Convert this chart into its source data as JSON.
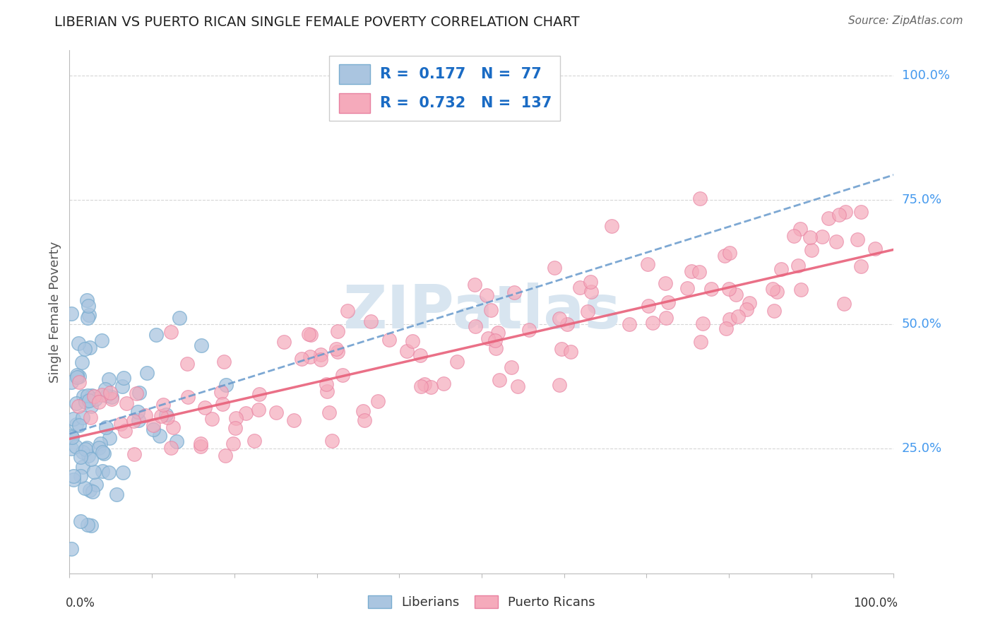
{
  "title": "LIBERIAN VS PUERTO RICAN SINGLE FEMALE POVERTY CORRELATION CHART",
  "source": "Source: ZipAtlas.com",
  "ylabel": "Single Female Poverty",
  "liberian_R": 0.177,
  "liberian_N": 77,
  "puertoRican_R": 0.732,
  "puertoRican_N": 137,
  "blue_fill": "#aac5e0",
  "blue_edge": "#7aadd0",
  "pink_fill": "#f5aabb",
  "pink_edge": "#e880a0",
  "blue_line_color": "#6699cc",
  "pink_line_color": "#e8607a",
  "legend_text_color": "#1a6bc4",
  "watermark_color": "#d8e5f0",
  "background_color": "#ffffff",
  "axis_color": "#bbbbbb",
  "right_label_color": "#4499ee",
  "title_color": "#222222",
  "source_color": "#666666"
}
